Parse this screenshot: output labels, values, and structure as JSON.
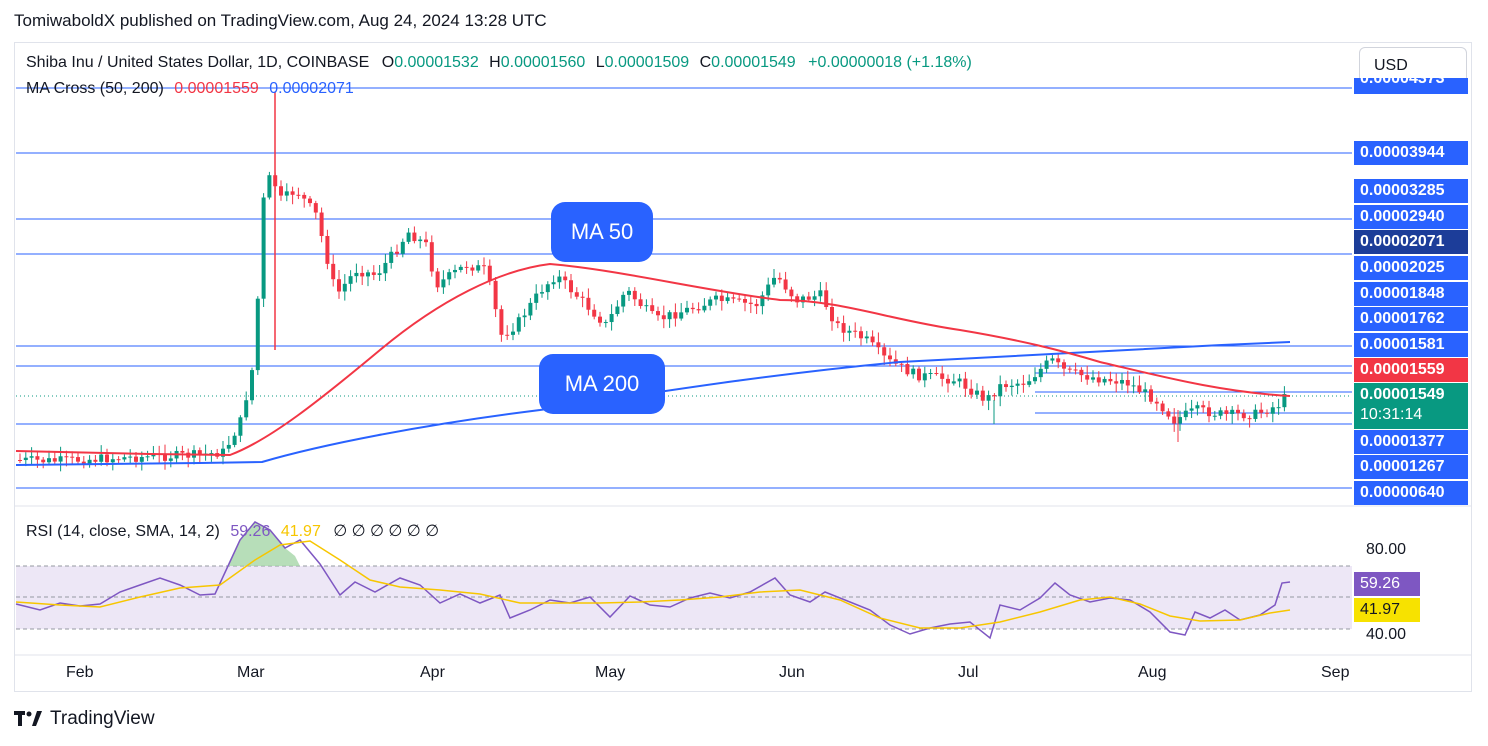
{
  "header": {
    "published": "TomiwaboldX published on TradingView.com, Aug 24, 2024 13:28 UTC"
  },
  "legend": {
    "symbol": "Shiba Inu / United States Dollar, 1D, COINBASE",
    "o_label": "O",
    "o_value": "0.00001532",
    "h_label": "H",
    "h_value": "0.00001560",
    "l_label": "L",
    "l_value": "0.00001509",
    "c_label": "C",
    "c_value": "0.00001549",
    "change": "+0.00000018 (+1.18%)",
    "ma_name": "MA Cross (50, 200)",
    "ma50_value": "0.00001559",
    "ma200_value": "0.00002071",
    "rsi_name": "RSI (14, close, SMA, 14, 2)",
    "rsi_value": "59.26",
    "rsi_sma_value": "41.97",
    "rsi_empty": "∅ ∅ ∅ ∅ ∅ ∅"
  },
  "currency_button": "USD",
  "annotations": {
    "ma50": "MA 50",
    "ma200": "MA 200"
  },
  "price_tags": {
    "top_cut": "0.00004373",
    "l1": "0.00003944",
    "l2": "0.00003285",
    "l3": "0.00002940",
    "ma200": "0.00002071",
    "l4": "0.00002025",
    "l5": "0.00001848",
    "l6": "0.00001762",
    "l7": "0.00001581",
    "ma50": "0.00001559",
    "last": "0.00001549",
    "countdown": "10:31:14",
    "l8": "0.00001377",
    "l9": "0.00001267",
    "l10": "0.00000640"
  },
  "rsi_axis": {
    "top": "80.00",
    "bottom": "40.00",
    "rsi_tag": "59.26",
    "sma_tag": "41.97"
  },
  "x_axis": [
    "Feb",
    "Mar",
    "Apr",
    "May",
    "Jun",
    "Jul",
    "Aug",
    "Sep"
  ],
  "footer": {
    "brand": "TradingView",
    "logo": "tv-logo-icon"
  },
  "colors": {
    "up": "#089981",
    "down": "#f23645",
    "ma50": "#f23645",
    "ma200": "#2962ff",
    "rsi": "#7e57c2",
    "rsi_sma": "#f7c600",
    "hline": "#2962ff",
    "rsi_band": "#ede7f6"
  },
  "chart_data": {
    "type": "candlestick",
    "title": "Shiba Inu / United States Dollar, 1D, COINBASE",
    "y_label": "USD",
    "x_range": [
      "2024-01-15",
      "2024-09-05"
    ],
    "horizontal_levels": [
      4.373e-05,
      3.944e-05,
      3.285e-05,
      2.94e-05,
      2.025e-05,
      1.848e-05,
      1.762e-05,
      1.581e-05,
      1.377e-05,
      1.267e-05,
      6.4e-06
    ],
    "ohlc_approx": {
      "description": "Daily candles: flat ~0.0000093 in Jan-Feb, spike to ~0.0000450 on Mar 5, decline to ~0.000017 by Jul, ~0.0000136 low in Aug, close 0.00001549 on Aug 24",
      "closes": [
        9.2e-06,
        9.3e-06,
        9.3e-06,
        9.4e-06,
        9.5e-06,
        9.5e-06,
        9.6e-06,
        9.8e-06,
        9.7e-06,
        9.8e-06,
        1.01e-05,
        1.1e-05,
        1.35e-05,
        1.9e-05,
        3.2e-05,
        3.45e-05,
        3.3e-05,
        3.1e-05,
        2.95e-05,
        3e-05,
        2.8e-05,
        2.7e-05,
        2.55e-05,
        2.62e-05,
        2.8e-05,
        2.95e-05,
        2.85e-05,
        2.7e-05,
        2.6e-05,
        2.65e-05,
        2.62e-05,
        2.4e-05,
        2.3e-05,
        2.15e-05,
        2.25e-05,
        2.35e-05,
        2.4e-05,
        2.28e-05,
        2.32e-05,
        2.45e-05,
        2.48e-05,
        2.55e-05,
        2.5e-05,
        2.43e-05,
        2.38e-05,
        2.35e-05,
        2.4e-05,
        2.48e-05,
        2.51e-05,
        2.46e-05,
        2.43e-05,
        2.5e-05,
        2.54e-05,
        2.47e-05,
        2.37e-05,
        2.4e-05,
        2.5e-05,
        2.55e-05,
        2.62e-05,
        2.46e-05,
        2.28e-05,
        2.2e-05,
        2.15e-05,
        2.06e-05,
        1.95e-05,
        1.8e-05,
        1.76e-05,
        1.8e-05,
        1.73e-05,
        1.68e-05,
        1.65e-05,
        1.71e-05,
        1.7e-05,
        1.68e-05,
        1.76e-05,
        1.75e-05,
        1.72e-05,
        1.76e-05,
        1.7e-05,
        1.65e-05,
        1.6e-05,
        1.58e-05,
        1.62e-05,
        1.66e-05,
        1.63e-05,
        1.58e-05,
        1.54e-05,
        1.44e-05,
        1.41e-05,
        1.47e-05,
        1.45e-05,
        1.49e-05,
        1.48e-05,
        1.46e-05,
        1.5e-05,
        1.52e-05,
        1.55e-05
      ],
      "note": "approximated from chart; not all ~230 daily candles listed"
    },
    "ma50": {
      "name": "MA 50",
      "last": 1.559e-05
    },
    "ma200": {
      "name": "MA 200",
      "last": 2.071e-05
    },
    "rsi": {
      "period": 14,
      "last": 59.26,
      "sma": 41.97,
      "band": [
        40,
        80
      ],
      "middle": 60
    }
  }
}
